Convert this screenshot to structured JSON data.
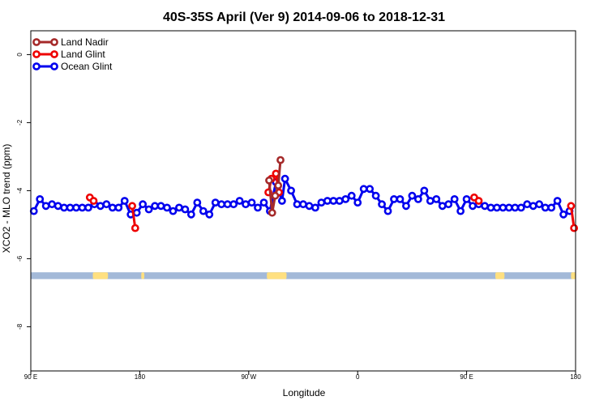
{
  "chart_data": {
    "type": "line",
    "title": "40S-35S April (Ver 9)   2014-09-06 to 2018-12-31",
    "xlabel": "Longitude",
    "ylabel": "XCO2 - MLO trend (ppm)",
    "xlim": [
      90,
      450
    ],
    "ylim": [
      -9.3,
      0.7
    ],
    "x_ticks": [
      {
        "value": 90,
        "label": "90 E"
      },
      {
        "value": 162,
        "label": "180"
      },
      {
        "value": 234,
        "label": "90 W"
      },
      {
        "value": 306,
        "label": "0"
      },
      {
        "value": 378,
        "label": "90 E"
      },
      {
        "value": 450,
        "label": "180"
      }
    ],
    "y_ticks": [
      0,
      -2,
      -4,
      -6,
      -8
    ],
    "grid": false,
    "legend_position": "top-left",
    "series": [
      {
        "name": "Land Nadir",
        "color": "#a52a2a",
        "points": [
          [
            247.5,
            -3.7
          ],
          [
            249.5,
            -4.65
          ],
          [
            251.5,
            -4.15
          ],
          [
            253.5,
            -3.85
          ],
          [
            255,
            -3.1
          ]
        ]
      },
      {
        "name": "Land Glint",
        "color": "#ee0000",
        "points": [
          [
            129,
            -4.2
          ],
          [
            131.5,
            -4.3
          ],
          [
            157,
            -4.45
          ],
          [
            159,
            -5.1
          ],
          [
            247,
            -4.05
          ],
          [
            249,
            -3.65
          ],
          [
            252,
            -3.5
          ],
          [
            254,
            -4.05
          ],
          [
            383,
            -4.2
          ],
          [
            386,
            -4.3
          ],
          [
            447,
            -4.45
          ],
          [
            449,
            -5.1
          ]
        ]
      },
      {
        "name": "Ocean Glint",
        "color": "#0000ee",
        "points": [
          [
            92,
            -4.6
          ],
          [
            96,
            -4.25
          ],
          [
            100,
            -4.45
          ],
          [
            104,
            -4.4
          ],
          [
            108,
            -4.45
          ],
          [
            112,
            -4.5
          ],
          [
            116,
            -4.5
          ],
          [
            120,
            -4.5
          ],
          [
            124,
            -4.5
          ],
          [
            128,
            -4.5
          ],
          [
            132,
            -4.4
          ],
          [
            136,
            -4.45
          ],
          [
            140,
            -4.4
          ],
          [
            144,
            -4.5
          ],
          [
            148,
            -4.5
          ],
          [
            152,
            -4.3
          ],
          [
            156,
            -4.7
          ],
          [
            160,
            -4.65
          ],
          [
            164,
            -4.4
          ],
          [
            168,
            -4.55
          ],
          [
            172,
            -4.45
          ],
          [
            176,
            -4.45
          ],
          [
            180,
            -4.5
          ],
          [
            184,
            -4.6
          ],
          [
            188,
            -4.5
          ],
          [
            192,
            -4.55
          ],
          [
            196,
            -4.7
          ],
          [
            200,
            -4.35
          ],
          [
            204,
            -4.6
          ],
          [
            208,
            -4.7
          ],
          [
            212,
            -4.35
          ],
          [
            216,
            -4.4
          ],
          [
            220,
            -4.4
          ],
          [
            224,
            -4.4
          ],
          [
            228,
            -4.3
          ],
          [
            232,
            -4.4
          ],
          [
            236,
            -4.35
          ],
          [
            240,
            -4.5
          ],
          [
            244,
            -4.35
          ],
          [
            248,
            -4.6
          ],
          [
            252,
            -3.75
          ],
          [
            256,
            -4.3
          ],
          [
            258,
            -3.65
          ],
          [
            262,
            -4.0
          ],
          [
            266,
            -4.4
          ],
          [
            270,
            -4.4
          ],
          [
            274,
            -4.45
          ],
          [
            278,
            -4.5
          ],
          [
            282,
            -4.35
          ],
          [
            286,
            -4.3
          ],
          [
            290,
            -4.3
          ],
          [
            294,
            -4.3
          ],
          [
            298,
            -4.25
          ],
          [
            302,
            -4.15
          ],
          [
            306,
            -4.35
          ],
          [
            310,
            -3.95
          ],
          [
            314,
            -3.95
          ],
          [
            318,
            -4.15
          ],
          [
            322,
            -4.4
          ],
          [
            326,
            -4.6
          ],
          [
            330,
            -4.25
          ],
          [
            334,
            -4.25
          ],
          [
            338,
            -4.45
          ],
          [
            342,
            -4.15
          ],
          [
            346,
            -4.25
          ],
          [
            350,
            -4.0
          ],
          [
            354,
            -4.3
          ],
          [
            358,
            -4.25
          ],
          [
            362,
            -4.45
          ],
          [
            366,
            -4.4
          ],
          [
            370,
            -4.25
          ],
          [
            374,
            -4.6
          ],
          [
            378,
            -4.25
          ],
          [
            382,
            -4.45
          ],
          [
            386,
            -4.4
          ],
          [
            390,
            -4.45
          ],
          [
            394,
            -4.5
          ],
          [
            398,
            -4.5
          ],
          [
            402,
            -4.5
          ],
          [
            406,
            -4.5
          ],
          [
            410,
            -4.5
          ],
          [
            414,
            -4.5
          ],
          [
            418,
            -4.4
          ],
          [
            422,
            -4.45
          ],
          [
            426,
            -4.4
          ],
          [
            430,
            -4.5
          ],
          [
            434,
            -4.5
          ],
          [
            438,
            -4.3
          ],
          [
            442,
            -4.7
          ],
          [
            446,
            -4.6
          ]
        ]
      }
    ],
    "map_strip": {
      "y_range": [
        -6.6,
        -6.4
      ],
      "ocean_color": "#a3b9d8",
      "land_color": "#ffe080",
      "land_segments": [
        [
          131,
          141
        ],
        [
          163,
          165
        ],
        [
          246,
          259
        ],
        [
          397,
          403
        ],
        [
          447,
          450
        ]
      ]
    }
  }
}
